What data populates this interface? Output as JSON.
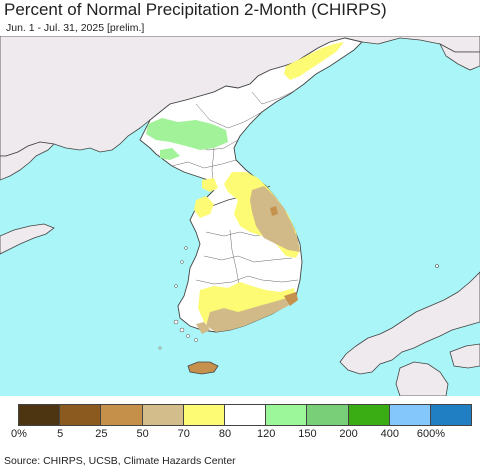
{
  "header": {
    "title": "Percent of Normal Precipitation 2-Month (CHIRPS)",
    "subtitle": "Jun. 1 - Jul. 31, 2025 [prelim.]"
  },
  "map": {
    "region": "Korean Peninsula",
    "colors": {
      "sea": "#aaf5f7",
      "foreign_land": "#eeeaee",
      "normal_land": "#ffffff",
      "dry_70_80": "#fdfb73",
      "dry_50_70": "#d2ba88",
      "dry_25_50": "#c5914c",
      "wet_120_150": "#a2f29a",
      "border": "#444444"
    }
  },
  "legend": {
    "colors": [
      "#4c3510",
      "#8b5a1e",
      "#c4904a",
      "#d3bd8a",
      "#fdfb73",
      "#ffffff",
      "#9cf79a",
      "#79cf78",
      "#3aad15",
      "#84c7fb",
      "#1f7fc2"
    ],
    "labels": [
      "0%",
      "5",
      "25",
      "50",
      "70",
      "80",
      "120",
      "150",
      "200",
      "400",
      "600%"
    ]
  },
  "footer": {
    "source": "Source: CHIRPS, UCSB, Climate Hazards Center"
  }
}
